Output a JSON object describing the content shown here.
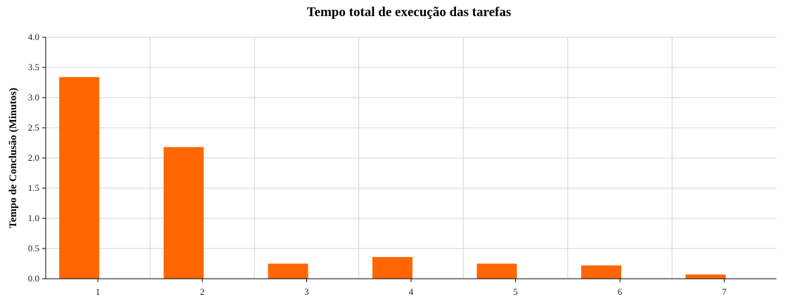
{
  "chart_data": {
    "type": "bar",
    "title": "Tempo total de execução das tarefas",
    "xlabel": "",
    "ylabel": "Tempo de Conclusão (Minutos)",
    "categories": [
      "1",
      "2",
      "3",
      "4",
      "5",
      "6",
      "7"
    ],
    "values": [
      3.34,
      2.18,
      0.25,
      0.36,
      0.25,
      0.22,
      0.07
    ],
    "ylim": [
      0,
      4.0
    ],
    "yticks": [
      "0.0",
      "0.5",
      "1.0",
      "1.5",
      "2.0",
      "2.5",
      "3.0",
      "3.5",
      "4.0"
    ],
    "grid": true,
    "colors": {
      "bar": "#ff6600",
      "grid": "#d3d3d3",
      "axis": "#000000"
    }
  }
}
